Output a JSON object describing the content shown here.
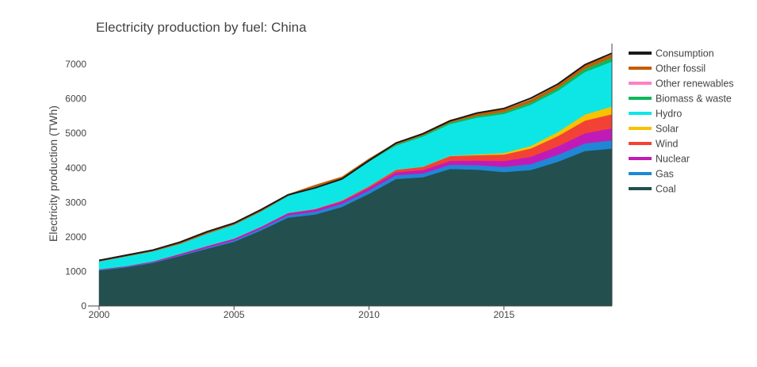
{
  "chart_data": {
    "type": "area",
    "stacked": true,
    "title": "Electricity production by fuel: China",
    "xlabel": "",
    "ylabel": "Electricity production (TWh)",
    "xlim": [
      2000,
      2019
    ],
    "ylim": [
      0,
      7600
    ],
    "x_ticks": [
      2000,
      2005,
      2010,
      2015
    ],
    "y_ticks": [
      0,
      1000,
      2000,
      3000,
      4000,
      5000,
      6000,
      7000
    ],
    "grid": false,
    "legend": "right",
    "x": [
      2000,
      2001,
      2002,
      2003,
      2004,
      2005,
      2006,
      2007,
      2008,
      2009,
      2010,
      2011,
      2012,
      2013,
      2014,
      2015,
      2016,
      2017,
      2018,
      2019
    ],
    "series": [
      {
        "name": "Coal",
        "color": "#234f4f",
        "values": [
          1030,
          1120,
          1250,
          1450,
          1660,
          1860,
          2190,
          2560,
          2650,
          2870,
          3250,
          3680,
          3730,
          3970,
          3950,
          3880,
          3940,
          4180,
          4490,
          4560
        ]
      },
      {
        "name": "Gas",
        "color": "#1f87d6",
        "values": [
          20,
          20,
          20,
          20,
          30,
          40,
          50,
          70,
          80,
          90,
          100,
          110,
          110,
          120,
          130,
          150,
          170,
          200,
          220,
          240
        ]
      },
      {
        "name": "Nuclear",
        "color": "#c11bb7",
        "values": [
          17,
          18,
          25,
          43,
          50,
          53,
          55,
          62,
          68,
          70,
          74,
          86,
          98,
          112,
          133,
          171,
          213,
          248,
          295,
          349
        ]
      },
      {
        "name": "Wind",
        "color": "#f24236",
        "values": [
          1,
          1,
          1,
          1,
          1,
          2,
          4,
          6,
          13,
          27,
          45,
          70,
          96,
          141,
          156,
          186,
          241,
          295,
          366,
          406
        ]
      },
      {
        "name": "Solar",
        "color": "#f8c200",
        "values": [
          0,
          0,
          0,
          0,
          0,
          0,
          0,
          0,
          0,
          0,
          1,
          3,
          4,
          8,
          24,
          45,
          75,
          118,
          177,
          224
        ]
      },
      {
        "name": "Hydro",
        "color": "#0ee6e6",
        "values": [
          222,
          277,
          288,
          284,
          353,
          397,
          436,
          485,
          637,
          616,
          722,
          699,
          872,
          920,
          1064,
          1130,
          1193,
          1194,
          1232,
          1302
        ]
      },
      {
        "name": "Biomass & waste",
        "color": "#0ab85a",
        "values": [
          2,
          2,
          3,
          3,
          4,
          5,
          8,
          12,
          15,
          20,
          25,
          32,
          39,
          45,
          51,
          57,
          66,
          80,
          93,
          112
        ]
      },
      {
        "name": "Other renewables",
        "color": "#ff7fc8",
        "values": [
          0,
          0,
          0,
          0,
          0,
          0,
          0,
          0,
          0,
          0,
          0,
          0,
          0,
          0,
          0,
          0,
          0,
          0,
          0,
          0
        ]
      },
      {
        "name": "Other fossil",
        "color": "#c45c00",
        "values": [
          20,
          20,
          30,
          40,
          50,
          40,
          40,
          40,
          40,
          50,
          50,
          50,
          60,
          70,
          70,
          70,
          80,
          80,
          90,
          90
        ]
      }
    ],
    "line_series": [
      {
        "name": "Consumption",
        "color": "#1a1a1a",
        "values": [
          1320,
          1470,
          1620,
          1850,
          2150,
          2400,
          2790,
          3220,
          3420,
          3680,
          4210,
          4720,
          4990,
          5360,
          5590,
          5720,
          6020,
          6430,
          6990,
          7320
        ]
      }
    ],
    "legend_order": [
      "Consumption",
      "Other fossil",
      "Other renewables",
      "Biomass & waste",
      "Hydro",
      "Solar",
      "Wind",
      "Nuclear",
      "Gas",
      "Coal"
    ]
  }
}
